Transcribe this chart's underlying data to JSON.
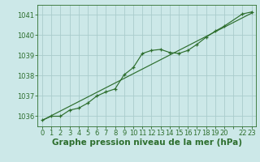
{
  "title": "Graphe pression niveau de la mer (hPa)",
  "bg_color": "#cce8e8",
  "grid_color": "#aacccc",
  "line_color": "#2d6e2d",
  "xlim": [
    -0.5,
    23.5
  ],
  "ylim": [
    1035.5,
    1041.5
  ],
  "yticks": [
    1036,
    1037,
    1038,
    1039,
    1040,
    1041
  ],
  "xtick_labels": [
    "0",
    "1",
    "2",
    "3",
    "4",
    "5",
    "6",
    "7",
    "8",
    "9",
    "10",
    "11",
    "12",
    "13",
    "14",
    "15",
    "16",
    "17",
    "18",
    "19",
    "20",
    "",
    "22",
    "23"
  ],
  "series1_x": [
    0,
    1,
    2,
    3,
    4,
    5,
    6,
    7,
    8,
    9,
    10,
    11,
    12,
    13,
    14,
    15,
    16,
    17,
    18,
    19,
    20,
    22,
    23
  ],
  "series1_y": [
    1035.8,
    1036.0,
    1036.0,
    1036.3,
    1036.4,
    1036.65,
    1037.0,
    1037.2,
    1037.35,
    1038.05,
    1038.4,
    1039.1,
    1039.25,
    1039.3,
    1039.15,
    1039.1,
    1039.25,
    1039.55,
    1039.9,
    1040.2,
    1040.45,
    1041.05,
    1041.15
  ],
  "series2_x": [
    0,
    1,
    2,
    3,
    4,
    5,
    6,
    7,
    8,
    9,
    10,
    11,
    12,
    13,
    14,
    15,
    16,
    17,
    18,
    19,
    20,
    22,
    23
  ],
  "series2_y": [
    1035.8,
    1036.03,
    1036.26,
    1036.49,
    1036.72,
    1036.95,
    1037.18,
    1037.41,
    1037.64,
    1037.87,
    1038.1,
    1038.33,
    1038.56,
    1038.79,
    1039.02,
    1039.25,
    1039.48,
    1039.71,
    1039.94,
    1040.17,
    1040.4,
    1040.86,
    1041.09
  ],
  "title_fontsize": 7.5,
  "tick_fontsize": 6.0
}
